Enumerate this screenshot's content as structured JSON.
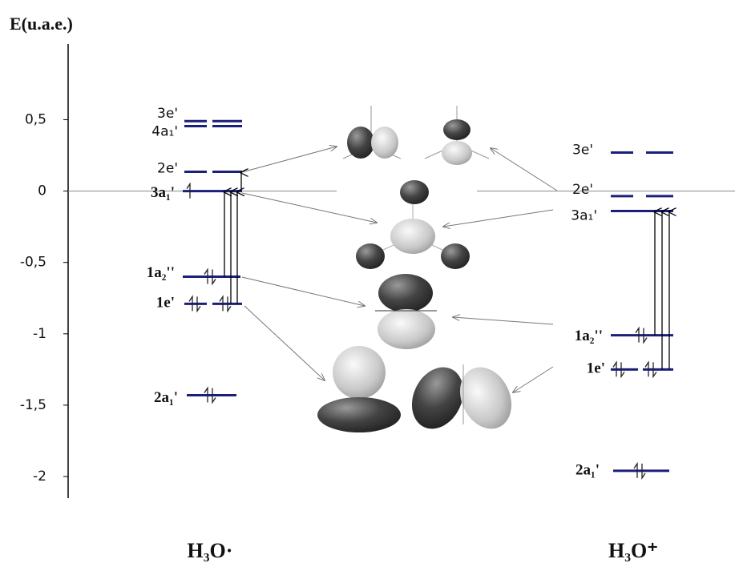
{
  "chart_data": {
    "type": "energy-levels",
    "y_label": "E(u.a.e.)",
    "ylim": [
      -2.14,
      1.03
    ],
    "yticks": [
      {
        "value": 0.5,
        "label": "0,5"
      },
      0,
      {
        "value": -0.5,
        "label": "-0,5"
      },
      -1,
      {
        "value": -1.5,
        "label": "-1,5"
      },
      -2
    ],
    "columns": [
      {
        "name": "H₃O·",
        "levels": [
          {
            "label": "3e'",
            "value": 0.49
          },
          {
            "label": "4a₁'",
            "value": 0.455
          },
          {
            "label": "2e'",
            "value": 0.135
          },
          {
            "label": "3a₁'",
            "value": 0,
            "electrons": [
              1
            ]
          },
          {
            "label": "1a₂''",
            "value": -0.6,
            "electrons": [
              2
            ]
          },
          {
            "label": "1e'",
            "value": -0.79,
            "electrons": [
              2,
              2
            ]
          },
          {
            "label": "2a₁'",
            "value": -1.43,
            "electrons": [
              2
            ]
          }
        ]
      },
      {
        "name": "H₃O⁺",
        "levels": [
          {
            "label": "3e'",
            "value": 0.27
          },
          {
            "label": "2e'",
            "value": -0.035
          },
          {
            "label": "3a₁'",
            "value": -0.14
          },
          {
            "label": "1a₂''",
            "value": -1.01,
            "electrons": [
              2
            ]
          },
          {
            "label": "1e'",
            "value": -1.25,
            "electrons": [
              2,
              2
            ]
          },
          {
            "label": "2a₁'",
            "value": -1.96,
            "electrons": [
              2
            ]
          }
        ]
      }
    ],
    "color": "#1a1f7a"
  }
}
